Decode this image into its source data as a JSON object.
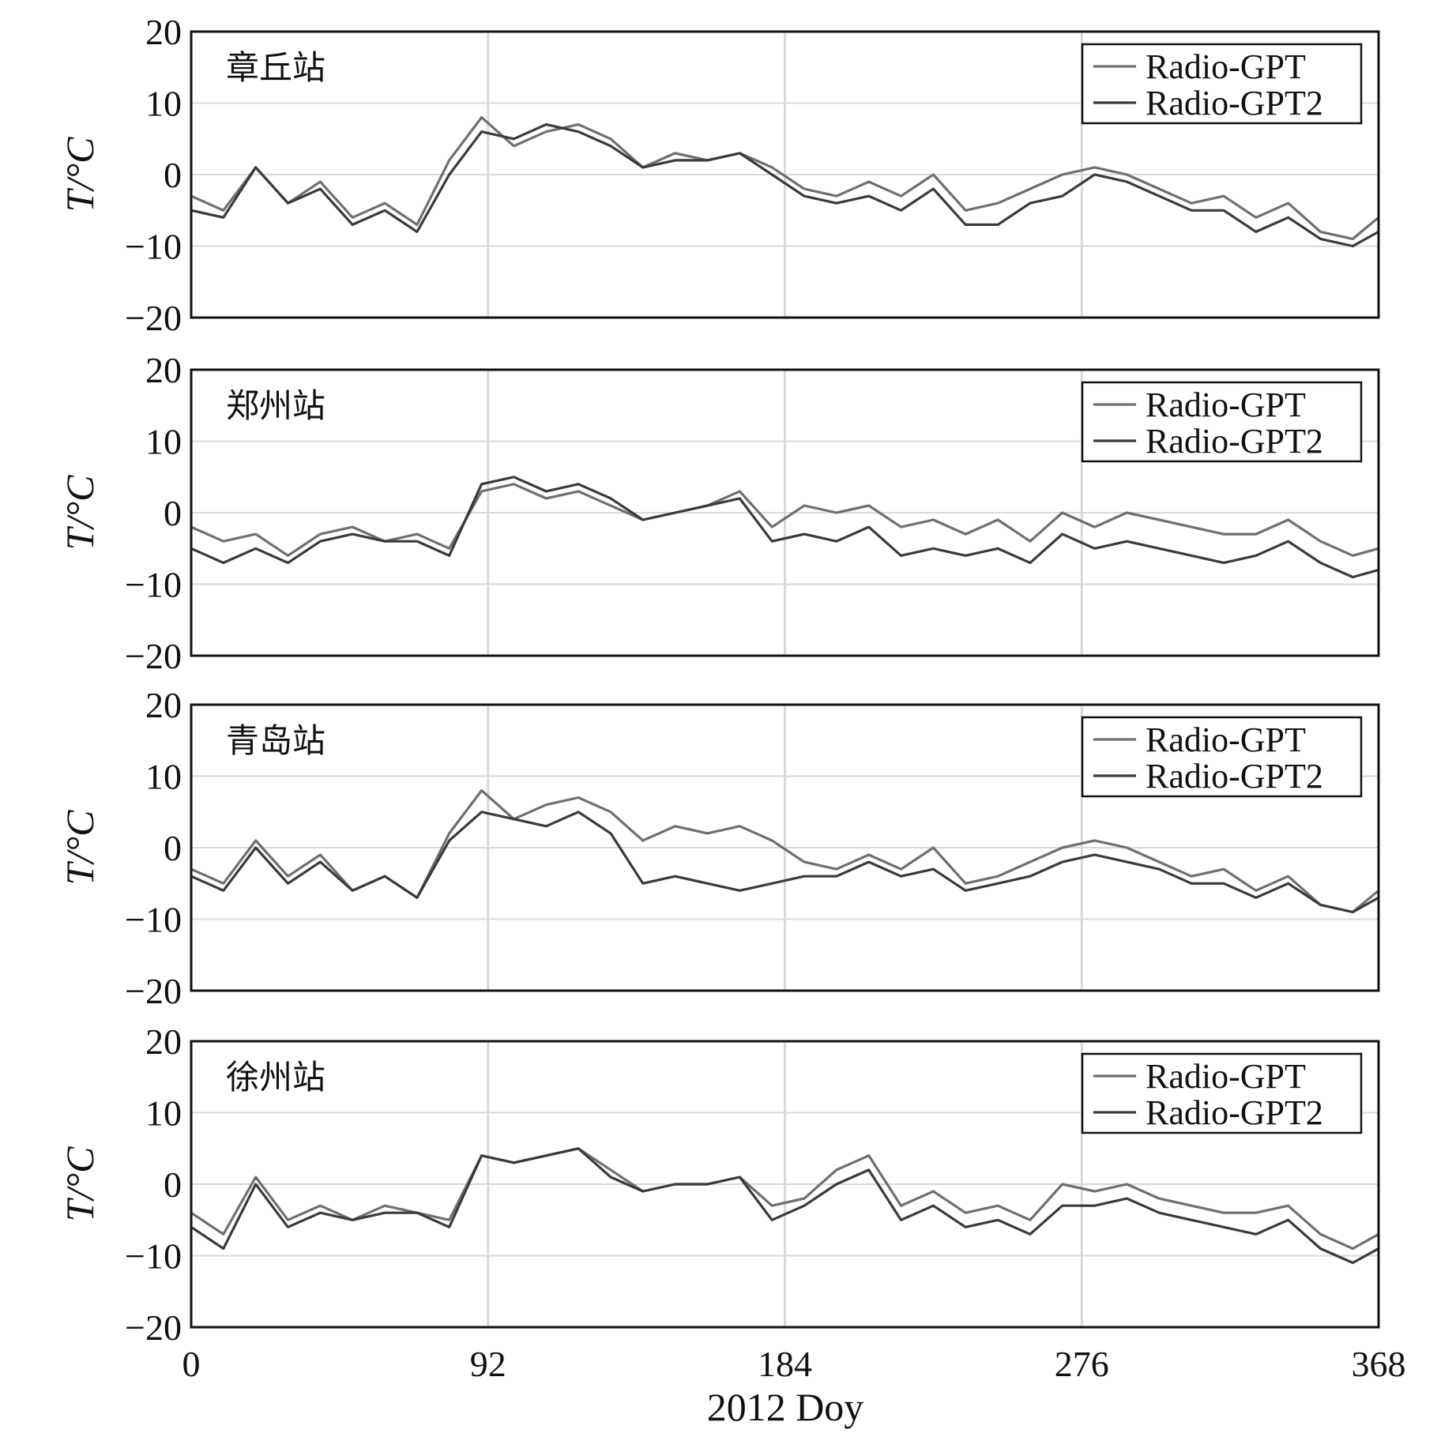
{
  "figure": {
    "xlabel": "2012 Doy",
    "ylabel": "T/°C",
    "xticks": [
      0,
      92,
      184,
      276,
      368
    ],
    "yticks": [
      20,
      10,
      0,
      -10,
      -20
    ]
  },
  "colors": {
    "Radio-GPT": "#6f6f6f",
    "Radio-GPT2": "#3a3a3a",
    "grid": "#d9d9d9",
    "frame": "#111111"
  },
  "chart_data": [
    {
      "type": "line",
      "station": "章丘站",
      "xlabel": "2012 Doy",
      "ylabel": "T/°C",
      "xlim": [
        0,
        368
      ],
      "ylim": [
        -20,
        20
      ],
      "legend_position": "top-right",
      "grid": true,
      "x": [
        0,
        10,
        20,
        30,
        40,
        50,
        60,
        70,
        80,
        90,
        100,
        110,
        120,
        130,
        140,
        150,
        160,
        170,
        180,
        190,
        200,
        210,
        220,
        230,
        240,
        250,
        260,
        270,
        280,
        290,
        300,
        310,
        320,
        330,
        340,
        350,
        360,
        368
      ],
      "series": [
        {
          "name": "Radio-GPT",
          "values": [
            -3,
            -5,
            1,
            -4,
            -1,
            -6,
            -4,
            -7,
            2,
            8,
            4,
            6,
            7,
            5,
            1,
            3,
            2,
            3,
            1,
            -2,
            -3,
            -1,
            -3,
            0,
            -5,
            -4,
            -2,
            0,
            1,
            0,
            -2,
            -4,
            -3,
            -6,
            -4,
            -8,
            -9,
            -6
          ]
        },
        {
          "name": "Radio-GPT2",
          "values": [
            -5,
            -6,
            1,
            -4,
            -2,
            -7,
            -5,
            -8,
            0,
            6,
            5,
            7,
            6,
            4,
            1,
            2,
            2,
            3,
            0,
            -3,
            -4,
            -3,
            -5,
            -2,
            -7,
            -7,
            -4,
            -3,
            0,
            -1,
            -3,
            -5,
            -5,
            -8,
            -6,
            -9,
            -10,
            -8
          ]
        }
      ]
    },
    {
      "type": "line",
      "station": "郑州站",
      "xlabel": "2012 Doy",
      "ylabel": "T/°C",
      "xlim": [
        0,
        368
      ],
      "ylim": [
        -20,
        20
      ],
      "legend_position": "top-right",
      "grid": true,
      "x": [
        0,
        10,
        20,
        30,
        40,
        50,
        60,
        70,
        80,
        90,
        100,
        110,
        120,
        130,
        140,
        150,
        160,
        170,
        180,
        190,
        200,
        210,
        220,
        230,
        240,
        250,
        260,
        270,
        280,
        290,
        300,
        310,
        320,
        330,
        340,
        350,
        360,
        368
      ],
      "series": [
        {
          "name": "Radio-GPT",
          "values": [
            -2,
            -4,
            -3,
            -6,
            -3,
            -2,
            -4,
            -3,
            -5,
            3,
            4,
            2,
            3,
            1,
            -1,
            0,
            1,
            3,
            -2,
            1,
            0,
            1,
            -2,
            -1,
            -3,
            -1,
            -4,
            0,
            -2,
            0,
            -1,
            -2,
            -3,
            -3,
            -1,
            -4,
            -6,
            -5
          ]
        },
        {
          "name": "Radio-GPT2",
          "values": [
            -5,
            -7,
            -5,
            -7,
            -4,
            -3,
            -4,
            -4,
            -6,
            4,
            5,
            3,
            4,
            2,
            -1,
            0,
            1,
            2,
            -4,
            -3,
            -4,
            -2,
            -6,
            -5,
            -6,
            -5,
            -7,
            -3,
            -5,
            -4,
            -5,
            -6,
            -7,
            -6,
            -4,
            -7,
            -9,
            -8
          ]
        }
      ]
    },
    {
      "type": "line",
      "station": "青岛站",
      "xlabel": "2012 Doy",
      "ylabel": "T/°C",
      "xlim": [
        0,
        368
      ],
      "ylim": [
        -20,
        20
      ],
      "legend_position": "top-right",
      "grid": true,
      "x": [
        0,
        10,
        20,
        30,
        40,
        50,
        60,
        70,
        80,
        90,
        100,
        110,
        120,
        130,
        140,
        150,
        160,
        170,
        180,
        190,
        200,
        210,
        220,
        230,
        240,
        250,
        260,
        270,
        280,
        290,
        300,
        310,
        320,
        330,
        340,
        350,
        360,
        368
      ],
      "series": [
        {
          "name": "Radio-GPT",
          "values": [
            -3,
            -5,
            1,
            -4,
            -1,
            -6,
            -4,
            -7,
            2,
            8,
            4,
            6,
            7,
            5,
            1,
            3,
            2,
            3,
            1,
            -2,
            -3,
            -1,
            -3,
            0,
            -5,
            -4,
            -2,
            0,
            1,
            0,
            -2,
            -4,
            -3,
            -6,
            -4,
            -8,
            -9,
            -6
          ]
        },
        {
          "name": "Radio-GPT2",
          "values": [
            -4,
            -6,
            0,
            -5,
            -2,
            -6,
            -4,
            -7,
            1,
            5,
            4,
            3,
            5,
            2,
            -5,
            -4,
            -5,
            -6,
            -5,
            -4,
            -4,
            -2,
            -4,
            -3,
            -6,
            -5,
            -4,
            -2,
            -1,
            -2,
            -3,
            -5,
            -5,
            -7,
            -5,
            -8,
            -9,
            -7
          ]
        }
      ]
    },
    {
      "type": "line",
      "station": "徐州站",
      "xlabel": "2012 Doy",
      "ylabel": "T/°C",
      "xlim": [
        0,
        368
      ],
      "ylim": [
        -20,
        20
      ],
      "legend_position": "top-right",
      "grid": true,
      "x": [
        0,
        10,
        20,
        30,
        40,
        50,
        60,
        70,
        80,
        90,
        100,
        110,
        120,
        130,
        140,
        150,
        160,
        170,
        180,
        190,
        200,
        210,
        220,
        230,
        240,
        250,
        260,
        270,
        280,
        290,
        300,
        310,
        320,
        330,
        340,
        350,
        360,
        368
      ],
      "series": [
        {
          "name": "Radio-GPT",
          "values": [
            -4,
            -7,
            1,
            -5,
            -3,
            -5,
            -3,
            -4,
            -5,
            4,
            3,
            4,
            5,
            2,
            -1,
            0,
            0,
            1,
            -3,
            -2,
            2,
            4,
            -3,
            -1,
            -4,
            -3,
            -5,
            0,
            -1,
            0,
            -2,
            -3,
            -4,
            -4,
            -3,
            -7,
            -9,
            -7
          ]
        },
        {
          "name": "Radio-GPT2",
          "values": [
            -6,
            -9,
            0,
            -6,
            -4,
            -5,
            -4,
            -4,
            -6,
            4,
            3,
            4,
            5,
            1,
            -1,
            0,
            0,
            1,
            -5,
            -3,
            0,
            2,
            -5,
            -3,
            -6,
            -5,
            -7,
            -3,
            -3,
            -2,
            -4,
            -5,
            -6,
            -7,
            -5,
            -9,
            -11,
            -9
          ]
        }
      ]
    }
  ]
}
